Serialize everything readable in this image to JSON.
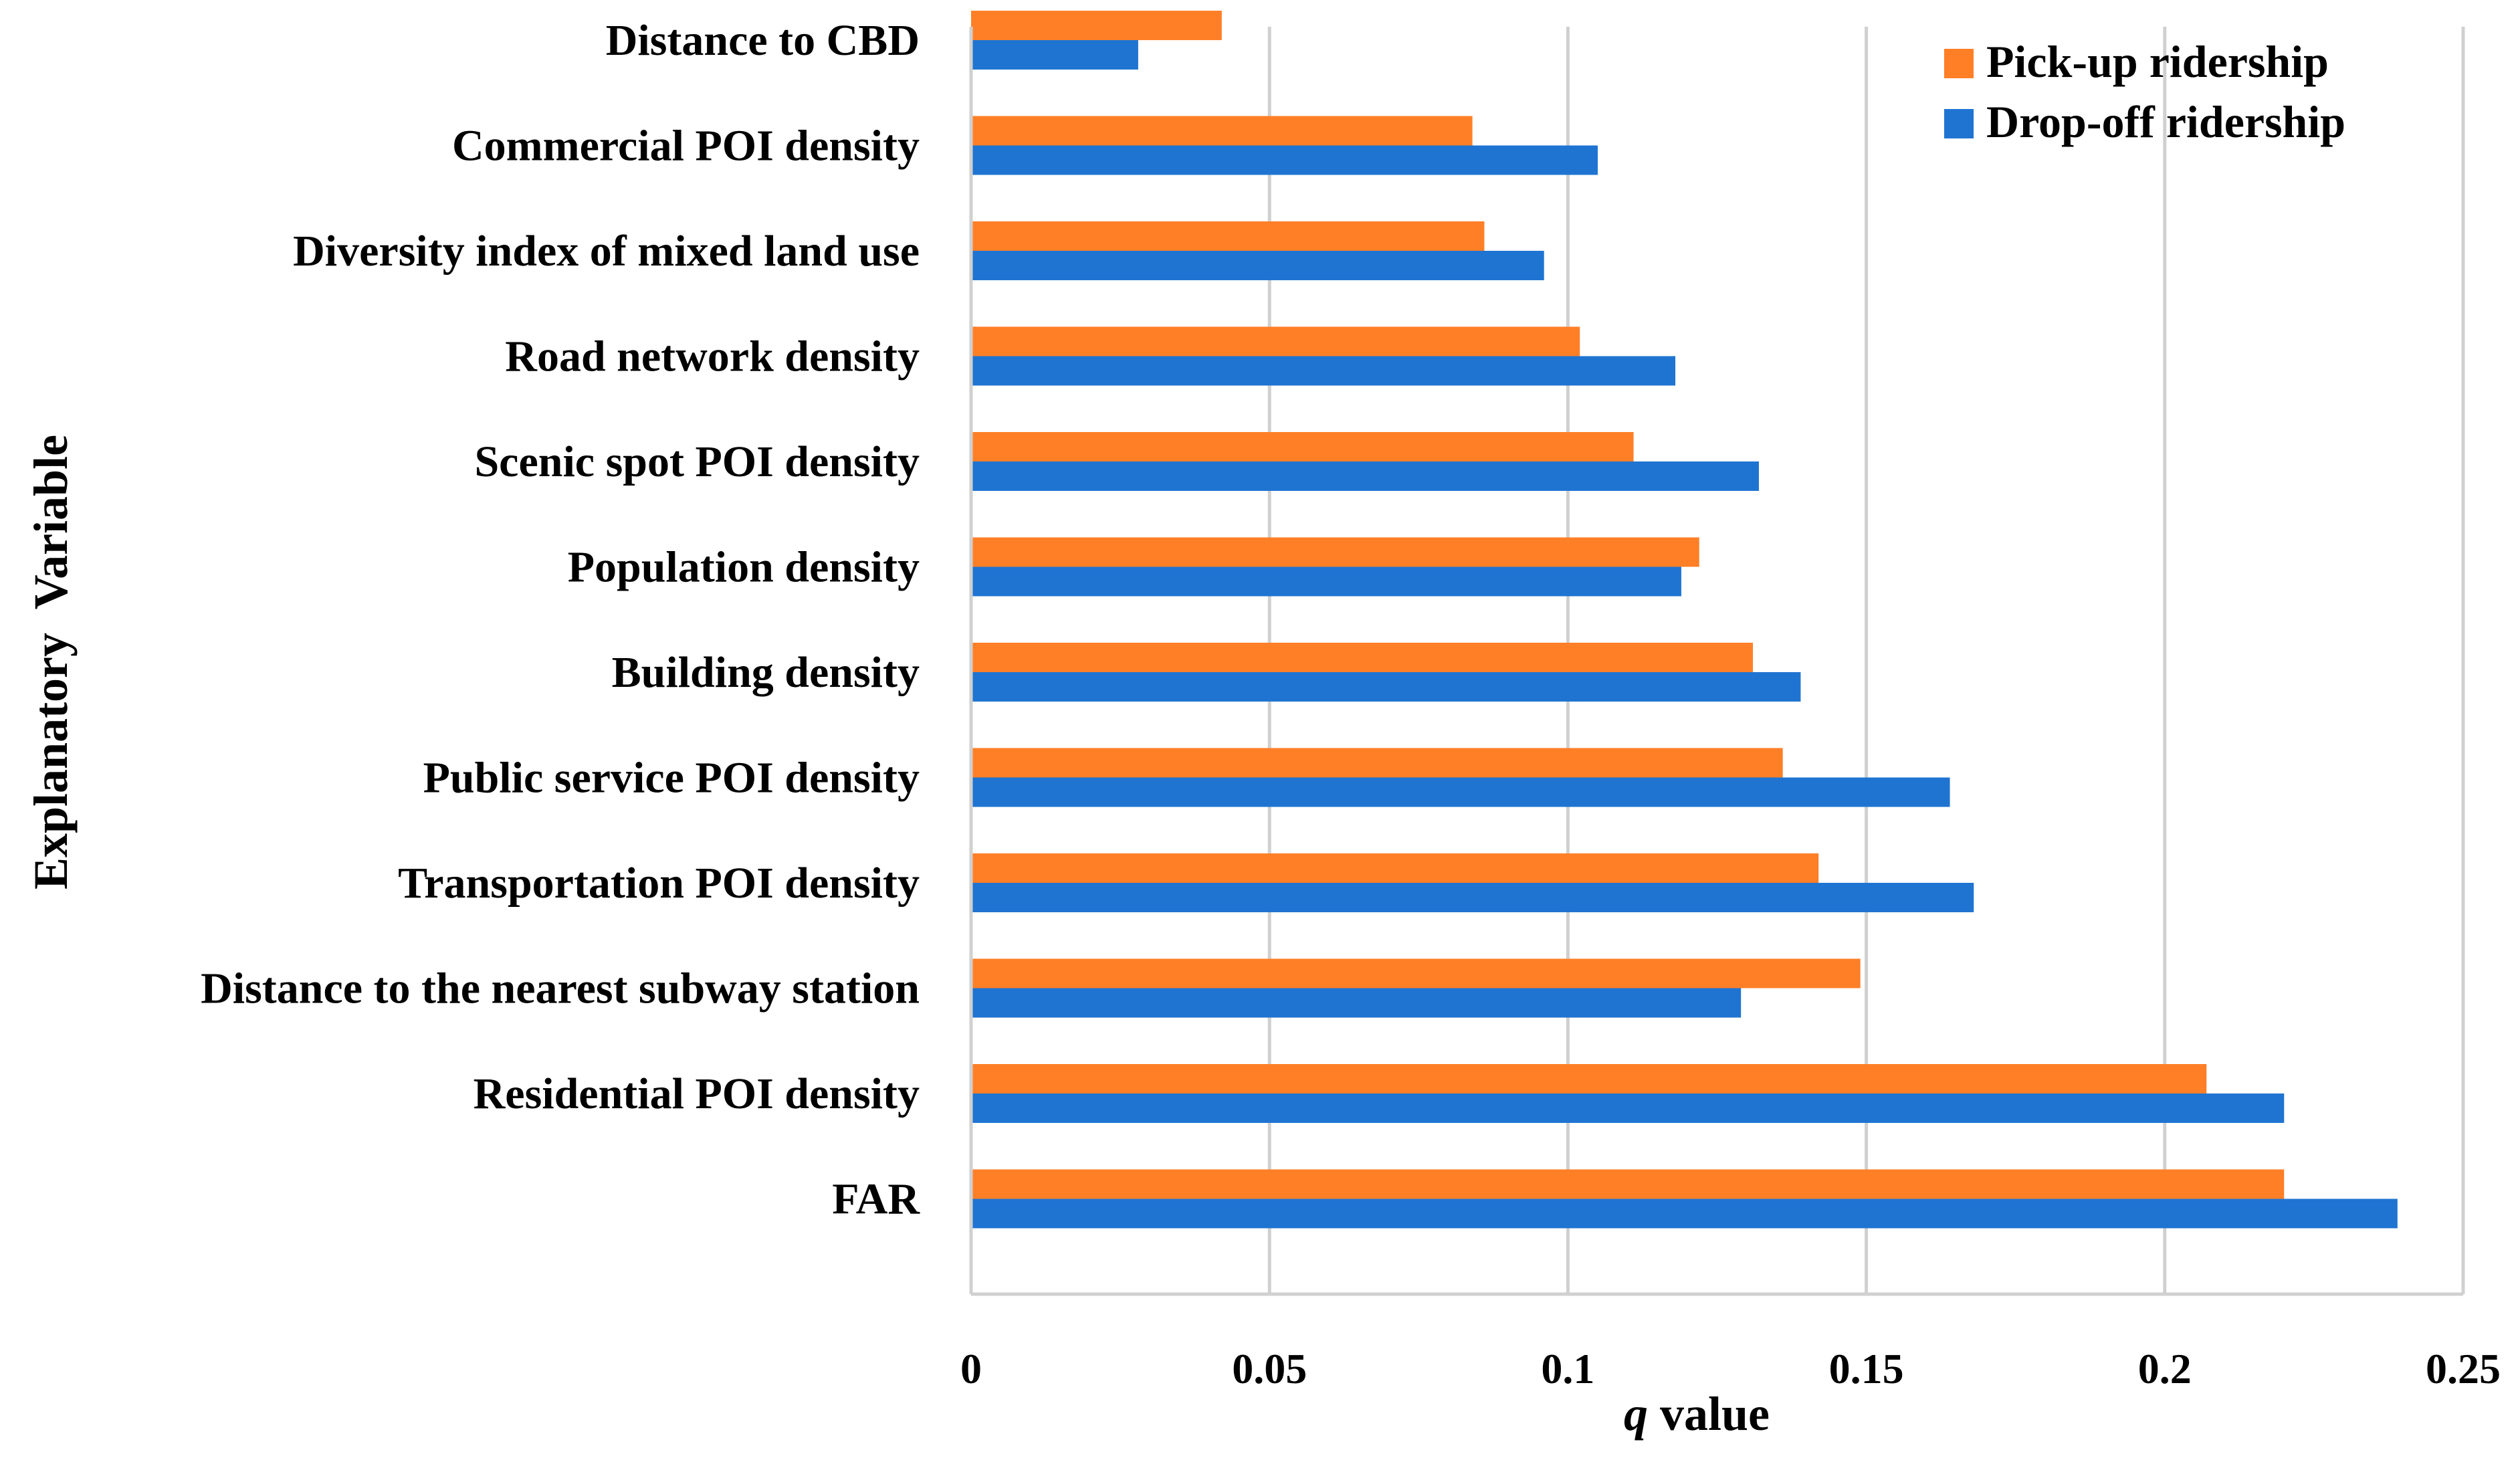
{
  "chart_data": {
    "type": "bar",
    "orientation": "horizontal",
    "title": "",
    "xlabel_italic": "q",
    "xlabel_rest": " value",
    "ylabel": "Explanatory  Variable",
    "xlim": [
      0,
      0.25
    ],
    "xticks": [
      0,
      0.05,
      0.1,
      0.15,
      0.2,
      0.25
    ],
    "xtick_labels": [
      "0",
      "0.05",
      "0.1",
      "0.15",
      "0.2",
      "0.25"
    ],
    "grid": "vertical",
    "legend_position": "top-right",
    "categories": [
      "Distance to CBD",
      "Commercial POI density",
      "Diversity index of mixed land use",
      "Road network density",
      "Scenic spot POI density",
      "Population density",
      "Building density",
      "Public service POI density",
      "Transportation POI density",
      "Distance to the nearest subway station",
      "Residential POI density",
      "FAR"
    ],
    "series": [
      {
        "name": "Pick-up ridership",
        "color": "#FF7F27",
        "values": [
          0.042,
          0.084,
          0.086,
          0.102,
          0.111,
          0.122,
          0.131,
          0.136,
          0.142,
          0.149,
          0.207,
          0.22
        ]
      },
      {
        "name": "Drop-off ridership",
        "color": "#1F74D1",
        "values": [
          0.028,
          0.105,
          0.096,
          0.118,
          0.132,
          0.119,
          0.139,
          0.164,
          0.168,
          0.129,
          0.22,
          0.239
        ]
      }
    ]
  }
}
